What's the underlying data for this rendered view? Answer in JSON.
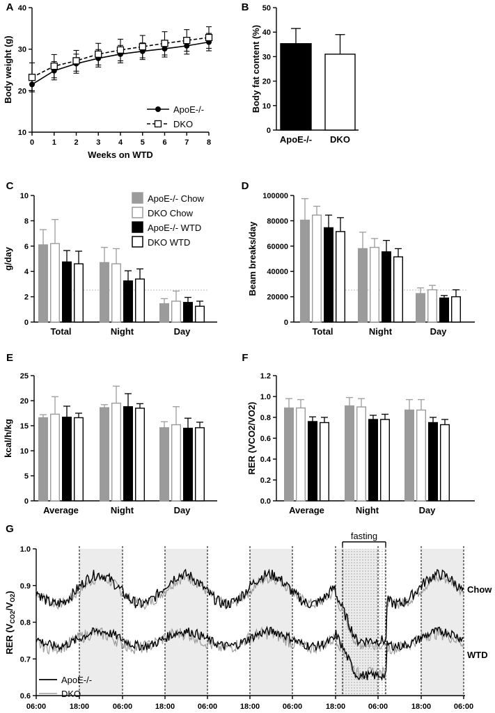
{
  "chart_data": [
    {
      "panel": "A",
      "type": "line",
      "xlabel": "Weeks on WTD",
      "ylabel": "Body weight (g)",
      "xlim": [
        0,
        8
      ],
      "ylim": [
        10,
        40
      ],
      "x": [
        0,
        1,
        2,
        3,
        4,
        5,
        6,
        7,
        8
      ],
      "xticks": [
        "0",
        "1",
        "2",
        "3",
        "4",
        "5",
        "6",
        "7",
        "8"
      ],
      "yticks": [
        "10",
        "20",
        "30",
        "40"
      ],
      "series": [
        {
          "name": "ApoE-/-",
          "values": [
            21.5,
            24.8,
            26.5,
            27.8,
            28.8,
            29.5,
            30.1,
            30.8,
            31.7
          ],
          "err": [
            1.5,
            2.2,
            2.3,
            2.1,
            2.1,
            2.0,
            2.0,
            2.0,
            2.1
          ],
          "style": "solid-filled-circle"
        },
        {
          "name": "DKO",
          "values": [
            23.2,
            25.9,
            27.2,
            28.8,
            29.8,
            30.6,
            31.4,
            32.1,
            32.8
          ],
          "err": [
            3.5,
            2.8,
            2.5,
            2.6,
            2.6,
            2.7,
            2.8,
            2.6,
            2.6
          ],
          "style": "dashed-open-square"
        }
      ]
    },
    {
      "panel": "B",
      "type": "bar",
      "ylabel": "Body fat content (%)",
      "categories": [
        "ApoE-/-",
        "DKO"
      ],
      "values": [
        35.3,
        31.0
      ],
      "err": [
        6.2,
        8.0
      ],
      "ylim": [
        0,
        50
      ],
      "yticks": [
        "0",
        "10",
        "20",
        "30",
        "40",
        "50"
      ],
      "colors": [
        "#000000",
        "#ffffff"
      ]
    },
    {
      "panel": "C",
      "type": "bar",
      "ylabel": "g/day",
      "categories": [
        "Total",
        "Night",
        "Day"
      ],
      "ylim": [
        0,
        10
      ],
      "yticks": [
        "0",
        "2",
        "4",
        "6",
        "8",
        "10"
      ],
      "series": [
        {
          "name": "ApoE-/- Chow",
          "values": [
            6.1,
            4.7,
            1.45
          ],
          "err": [
            1.2,
            1.2,
            0.4
          ]
        },
        {
          "name": "DKO Chow",
          "values": [
            6.2,
            4.6,
            1.65
          ],
          "err": [
            1.9,
            1.2,
            0.8
          ]
        },
        {
          "name": "ApoE-/- WTD",
          "values": [
            4.75,
            3.25,
            1.55
          ],
          "err": [
            0.9,
            0.8,
            0.4
          ]
        },
        {
          "name": "DKO WTD",
          "values": [
            4.6,
            3.4,
            1.25
          ],
          "err": [
            1.0,
            0.8,
            0.4
          ]
        }
      ]
    },
    {
      "panel": "D",
      "type": "bar",
      "ylabel": "Beam breaks/day",
      "categories": [
        "Total",
        "Night",
        "Day"
      ],
      "ylim": [
        0,
        100000
      ],
      "yticks": [
        "0",
        "20000",
        "40000",
        "60000",
        "80000",
        "100000"
      ],
      "series": [
        {
          "name": "ApoE-/- Chow",
          "values": [
            80500,
            58000,
            22500
          ],
          "err": [
            17000,
            13000,
            4500
          ]
        },
        {
          "name": "DKO Chow",
          "values": [
            84500,
            59000,
            25500
          ],
          "err": [
            7000,
            7000,
            3500
          ]
        },
        {
          "name": "ApoE-/- WTD",
          "values": [
            74500,
            55500,
            19000
          ],
          "err": [
            10000,
            9000,
            2000
          ]
        },
        {
          "name": "DKO WTD",
          "values": [
            71500,
            51500,
            20000
          ],
          "err": [
            11000,
            6500,
            5500
          ]
        }
      ]
    },
    {
      "panel": "E",
      "type": "bar",
      "ylabel": "kcal/h/kg",
      "categories": [
        "Average",
        "Night",
        "Day"
      ],
      "ylim": [
        0,
        25
      ],
      "yticks": [
        "0",
        "5",
        "10",
        "15",
        "20",
        "25"
      ],
      "series": [
        {
          "name": "ApoE-/- Chow",
          "values": [
            16.6,
            18.6,
            14.6
          ],
          "err": [
            0.6,
            0.6,
            1.2
          ]
        },
        {
          "name": "DKO Chow",
          "values": [
            17.3,
            19.5,
            15.2
          ],
          "err": [
            3.5,
            3.4,
            3.6
          ]
        },
        {
          "name": "ApoE-/- WTD",
          "values": [
            16.7,
            18.8,
            14.5
          ],
          "err": [
            2.2,
            2.6,
            2.0
          ]
        },
        {
          "name": "DKO WTD",
          "values": [
            16.6,
            18.5,
            14.6
          ],
          "err": [
            0.9,
            0.9,
            1.1
          ]
        }
      ]
    },
    {
      "panel": "F",
      "type": "bar",
      "ylabel": "RER (VCO2/VO2)",
      "categories": [
        "Average",
        "Night",
        "Day"
      ],
      "ylim": [
        0,
        1.2
      ],
      "yticks": [
        "0.0",
        "0.2",
        "0.4",
        "0.6",
        "0.8",
        "1.0",
        "1.2"
      ],
      "series": [
        {
          "name": "ApoE-/- Chow",
          "values": [
            0.89,
            0.91,
            0.87
          ],
          "err": [
            0.09,
            0.08,
            0.1
          ]
        },
        {
          "name": "DKO Chow",
          "values": [
            0.89,
            0.9,
            0.87
          ],
          "err": [
            0.08,
            0.08,
            0.1
          ]
        },
        {
          "name": "ApoE-/- WTD",
          "values": [
            0.76,
            0.78,
            0.75
          ],
          "err": [
            0.045,
            0.04,
            0.05
          ]
        },
        {
          "name": "DKO WTD",
          "values": [
            0.75,
            0.78,
            0.73
          ],
          "err": [
            0.05,
            0.05,
            0.05
          ]
        }
      ]
    },
    {
      "panel": "G",
      "type": "line",
      "ylabel": "RER (VCO2/VO2)",
      "ylim": [
        0.6,
        1.0
      ],
      "yticks": [
        "0.6",
        "0.7",
        "0.8",
        "0.9",
        "1.0"
      ],
      "xticks": [
        "06:00",
        "18:00",
        "06:00",
        "18:00",
        "06:00",
        "18:00",
        "06:00",
        "18:00",
        "06:00",
        "18:00",
        "06:00"
      ],
      "annotation": "fasting",
      "group_labels": [
        "Chow",
        "WTD"
      ],
      "series_names": [
        "ApoE-/-",
        "DKO"
      ]
    }
  ],
  "legend": {
    "bar_groups": [
      "ApoE-/- Chow",
      "DKO Chow",
      "ApoE-/- WTD",
      "DKO WTD"
    ]
  },
  "colors": {
    "gray": "#9b9b9b",
    "black": "#000000",
    "shade": "#ececec"
  },
  "panel_letters": [
    "A",
    "B",
    "C",
    "D",
    "E",
    "F",
    "G"
  ]
}
